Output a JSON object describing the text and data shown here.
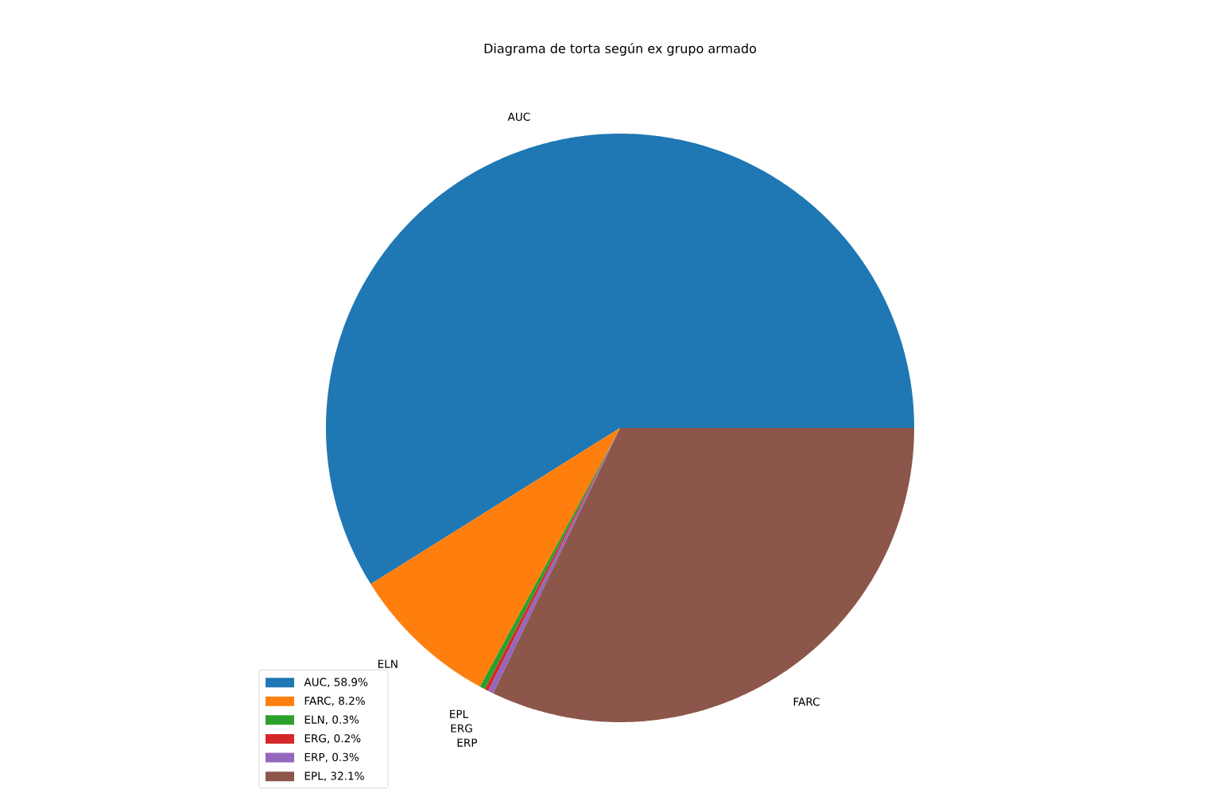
{
  "chart_data": {
    "type": "pie",
    "title": "Diagrama de torta según ex grupo armado",
    "categories": [
      "AUC, 58.9%",
      "FARC, 8.2%",
      "ELN, 0.3%",
      "ERG, 0.2%",
      "ERP, 0.3%",
      "EPL, 32.1%"
    ],
    "values": [
      58.9,
      8.2,
      0.3,
      0.2,
      0.3,
      32.1
    ],
    "colors": [
      "#1f77b4",
      "#ff7f0e",
      "#2ca02c",
      "#d62728",
      "#9467bd",
      "#8c564b"
    ],
    "annotations": [
      "AUC",
      "ELN",
      "EPL",
      "ERG",
      "ERP",
      "FARC"
    ],
    "legend": "bottom left"
  }
}
